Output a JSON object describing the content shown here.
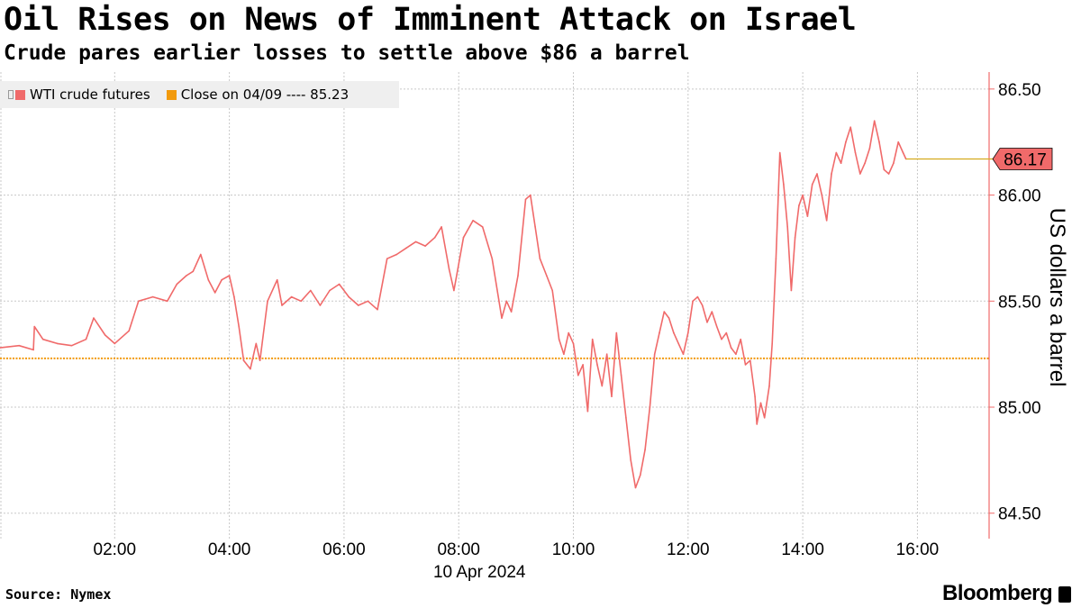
{
  "header": {
    "title": "Oil Rises on News of Imminent Attack on Israel",
    "subtitle": "Crude pares earlier losses to settle above $86 a barrel"
  },
  "footer": {
    "source": "Source: Nymex",
    "brand": "Bloomberg"
  },
  "colors": {
    "series": "#f06a6a",
    "close_line": "#f29a0c",
    "last_price_box": "#f06a6a",
    "last_price_connector": "#d4aa1e",
    "grid": "#c8c8c8",
    "legend_bg": "#efefef"
  },
  "chart_data": {
    "type": "line",
    "title": "Oil Rises on News of Imminent Attack on Israel",
    "subtitle": "Crude pares earlier losses to settle above $86 a barrel",
    "ylabel": "US dollars a barrel",
    "xlabel": "10 Apr 2024",
    "x_ticks": [
      "02:00",
      "04:00",
      "06:00",
      "08:00",
      "10:00",
      "12:00",
      "14:00",
      "16:00"
    ],
    "y_ticks": [
      "84.50",
      "85.00",
      "85.50",
      "86.00",
      "86.50"
    ],
    "xlim": [
      "00:00",
      "17:15"
    ],
    "ylim": [
      84.38,
      86.58
    ],
    "y_axis_position": "right",
    "grid": true,
    "legend_position": "top-left",
    "legend": [
      {
        "label": "WTI crude futures",
        "color": "#f06a6a"
      },
      {
        "label": "Close on 04/09 ---- 85.23",
        "color": "#f29a0c"
      }
    ],
    "reference_line": {
      "label": "Close on 04/09",
      "value": 85.23
    },
    "last_value_label": "86.17",
    "series": [
      {
        "name": "WTI crude futures",
        "points": [
          [
            "00:00",
            85.28
          ],
          [
            "00:20",
            85.29
          ],
          [
            "00:35",
            85.27
          ],
          [
            "00:36",
            85.38
          ],
          [
            "00:45",
            85.32
          ],
          [
            "01:00",
            85.3
          ],
          [
            "01:15",
            85.29
          ],
          [
            "01:30",
            85.32
          ],
          [
            "01:38",
            85.42
          ],
          [
            "01:50",
            85.34
          ],
          [
            "02:00",
            85.3
          ],
          [
            "02:15",
            85.36
          ],
          [
            "02:25",
            85.5
          ],
          [
            "02:40",
            85.52
          ],
          [
            "02:55",
            85.5
          ],
          [
            "03:05",
            85.58
          ],
          [
            "03:15",
            85.62
          ],
          [
            "03:22",
            85.64
          ],
          [
            "03:30",
            85.72
          ],
          [
            "03:38",
            85.6
          ],
          [
            "03:45",
            85.54
          ],
          [
            "03:52",
            85.6
          ],
          [
            "04:00",
            85.62
          ],
          [
            "04:05",
            85.52
          ],
          [
            "04:10",
            85.38
          ],
          [
            "04:15",
            85.22
          ],
          [
            "04:22",
            85.18
          ],
          [
            "04:28",
            85.3
          ],
          [
            "04:32",
            85.22
          ],
          [
            "04:40",
            85.5
          ],
          [
            "04:50",
            85.6
          ],
          [
            "04:55",
            85.48
          ],
          [
            "05:05",
            85.52
          ],
          [
            "05:15",
            85.5
          ],
          [
            "05:25",
            85.55
          ],
          [
            "05:35",
            85.48
          ],
          [
            "05:45",
            85.55
          ],
          [
            "05:55",
            85.58
          ],
          [
            "06:05",
            85.52
          ],
          [
            "06:15",
            85.48
          ],
          [
            "06:25",
            85.5
          ],
          [
            "06:35",
            85.46
          ],
          [
            "06:45",
            85.7
          ],
          [
            "06:55",
            85.72
          ],
          [
            "07:05",
            85.75
          ],
          [
            "07:15",
            85.78
          ],
          [
            "07:25",
            85.76
          ],
          [
            "07:35",
            85.8
          ],
          [
            "07:42",
            85.85
          ],
          [
            "07:50",
            85.65
          ],
          [
            "07:55",
            85.55
          ],
          [
            "08:05",
            85.8
          ],
          [
            "08:15",
            85.88
          ],
          [
            "08:25",
            85.85
          ],
          [
            "08:35",
            85.7
          ],
          [
            "08:45",
            85.42
          ],
          [
            "08:50",
            85.5
          ],
          [
            "08:55",
            85.45
          ],
          [
            "09:02",
            85.62
          ],
          [
            "09:10",
            85.98
          ],
          [
            "09:15",
            86.0
          ],
          [
            "09:20",
            85.85
          ],
          [
            "09:25",
            85.7
          ],
          [
            "09:32",
            85.62
          ],
          [
            "09:38",
            85.55
          ],
          [
            "09:45",
            85.32
          ],
          [
            "09:50",
            85.25
          ],
          [
            "09:55",
            85.35
          ],
          [
            "10:00",
            85.3
          ],
          [
            "10:05",
            85.15
          ],
          [
            "10:10",
            85.2
          ],
          [
            "10:15",
            84.98
          ],
          [
            "10:20",
            85.32
          ],
          [
            "10:25",
            85.2
          ],
          [
            "10:30",
            85.1
          ],
          [
            "10:35",
            85.25
          ],
          [
            "10:40",
            85.05
          ],
          [
            "10:45",
            85.35
          ],
          [
            "10:50",
            85.15
          ],
          [
            "10:55",
            84.95
          ],
          [
            "11:00",
            84.75
          ],
          [
            "11:05",
            84.62
          ],
          [
            "11:10",
            84.68
          ],
          [
            "11:15",
            84.8
          ],
          [
            "11:20",
            85.0
          ],
          [
            "11:25",
            85.25
          ],
          [
            "11:30",
            85.35
          ],
          [
            "11:35",
            85.45
          ],
          [
            "11:40",
            85.42
          ],
          [
            "11:45",
            85.35
          ],
          [
            "11:50",
            85.3
          ],
          [
            "11:55",
            85.25
          ],
          [
            "12:00",
            85.35
          ],
          [
            "12:05",
            85.5
          ],
          [
            "12:10",
            85.52
          ],
          [
            "12:15",
            85.48
          ],
          [
            "12:20",
            85.4
          ],
          [
            "12:25",
            85.45
          ],
          [
            "12:30",
            85.38
          ],
          [
            "12:35",
            85.32
          ],
          [
            "12:40",
            85.35
          ],
          [
            "12:45",
            85.28
          ],
          [
            "12:50",
            85.25
          ],
          [
            "12:55",
            85.32
          ],
          [
            "13:00",
            85.2
          ],
          [
            "13:05",
            85.22
          ],
          [
            "13:10",
            85.05
          ],
          [
            "13:12",
            84.92
          ],
          [
            "13:16",
            85.02
          ],
          [
            "13:20",
            84.95
          ],
          [
            "13:25",
            85.1
          ],
          [
            "13:28",
            85.3
          ],
          [
            "13:32",
            85.7
          ],
          [
            "13:36",
            86.2
          ],
          [
            "13:40",
            86.05
          ],
          [
            "13:44",
            85.85
          ],
          [
            "13:48",
            85.55
          ],
          [
            "13:52",
            85.8
          ],
          [
            "13:56",
            85.95
          ],
          [
            "14:00",
            86.0
          ],
          [
            "14:05",
            85.9
          ],
          [
            "14:10",
            86.05
          ],
          [
            "14:15",
            86.1
          ],
          [
            "14:20",
            86.0
          ],
          [
            "14:25",
            85.88
          ],
          [
            "14:30",
            86.1
          ],
          [
            "14:35",
            86.2
          ],
          [
            "14:40",
            86.15
          ],
          [
            "14:45",
            86.25
          ],
          [
            "14:50",
            86.32
          ],
          [
            "14:55",
            86.2
          ],
          [
            "15:00",
            86.1
          ],
          [
            "15:05",
            86.15
          ],
          [
            "15:10",
            86.22
          ],
          [
            "15:15",
            86.35
          ],
          [
            "15:20",
            86.25
          ],
          [
            "15:25",
            86.12
          ],
          [
            "15:30",
            86.1
          ],
          [
            "15:35",
            86.15
          ],
          [
            "15:40",
            86.25
          ],
          [
            "15:45",
            86.2
          ],
          [
            "15:48",
            86.17
          ]
        ]
      }
    ]
  }
}
